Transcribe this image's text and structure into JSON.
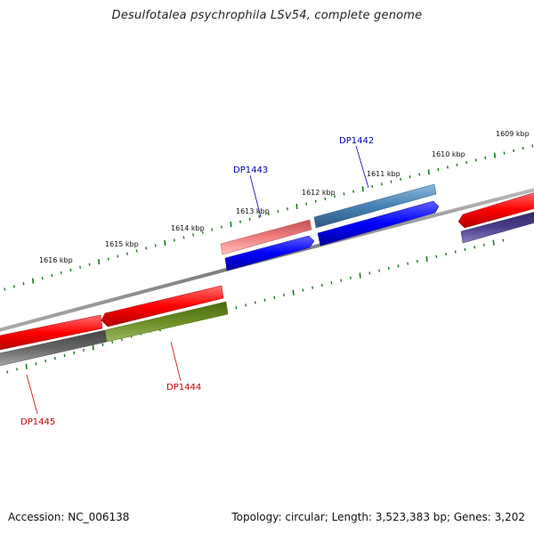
{
  "title": "Desulfotalea psychrophila LSv54, complete genome",
  "footer": {
    "accession": "Accession: NC_006138",
    "summary": "Topology: circular; Length: 3,523,383 bp; Genes: 3,202"
  },
  "ticks": [
    "1609 kbp",
    "1610 kbp",
    "1611 kbp",
    "1612 kbp",
    "1613 kbp",
    "1614 kbp",
    "1615 kbp",
    "1616 kbp"
  ],
  "genes": {
    "top": [
      "DP1442",
      "DP1443"
    ],
    "bottom": [
      "DP1444",
      "DP1445"
    ]
  },
  "colors": {
    "label_top": "#0000aa",
    "label_bottom": "#cc0000",
    "tick": "#1a7a1a",
    "backbone": "#888888",
    "red": "#ff0000",
    "blue": "#0000ff",
    "steelblue": "#4682b4",
    "pink": "#f08080",
    "olive": "#6b8e23",
    "gray": "#666666",
    "slate": "#483d8b"
  }
}
